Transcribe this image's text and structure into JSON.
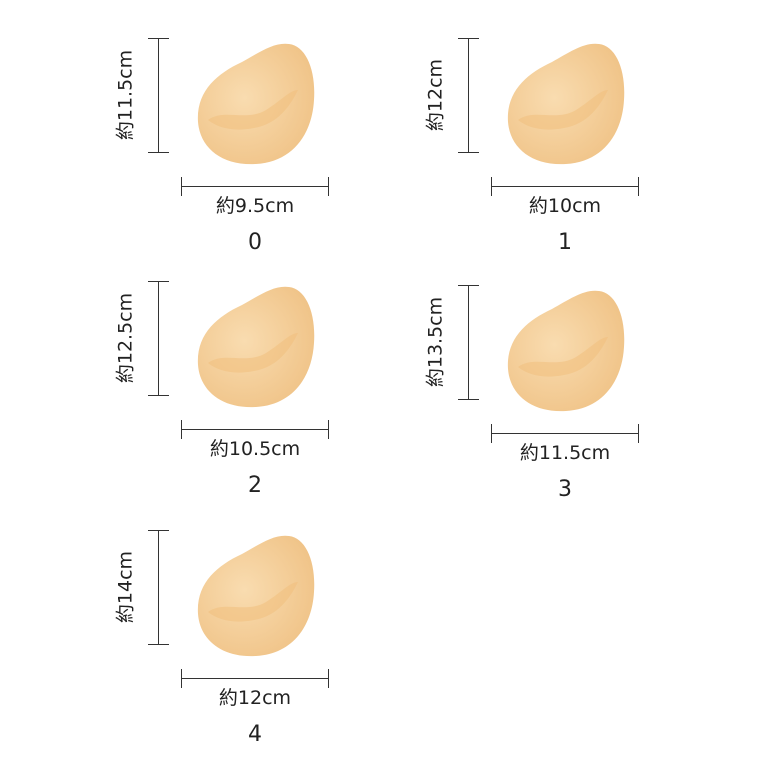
{
  "items": [
    {
      "number": "0",
      "height": "約11.5cm",
      "width": "約9.5cm"
    },
    {
      "number": "1",
      "height": "約12cm",
      "width": "約10cm"
    },
    {
      "number": "2",
      "height": "約12.5cm",
      "width": "約10.5cm"
    },
    {
      "number": "3",
      "height": "約13.5cm",
      "width": "約11.5cm"
    },
    {
      "number": "4",
      "height": "約14cm",
      "width": "約12cm"
    }
  ],
  "colors": {
    "pad_light": "#f9dcb0",
    "pad_dark": "#efc184",
    "line": "#333333"
  }
}
